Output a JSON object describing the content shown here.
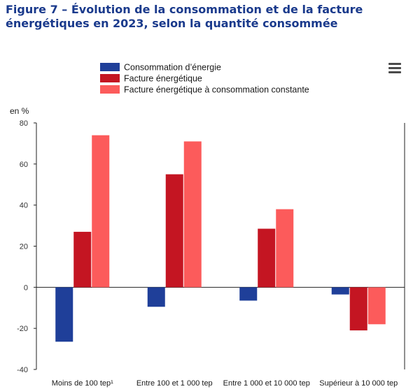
{
  "title": "Figure 7 – Évolution de la consommation et de la facture énergétiques en 2023, selon la quantité consommée",
  "menu_icon": "hamburger-menu-icon",
  "chart_data": {
    "type": "bar",
    "title": "",
    "ylabel": "en %",
    "xlabel": "",
    "ylim": [
      -40,
      80
    ],
    "yticks": [
      -40,
      -20,
      0,
      20,
      40,
      60,
      80
    ],
    "grid": false,
    "legend_position": "top",
    "categories": [
      "Moins de 100 tep¹",
      "Entre 100 et 1 000 tep",
      "Entre 1 000 et 10 000 tep",
      "Supérieur à 10 000 tep"
    ],
    "series": [
      {
        "name": "Consommation d’énergie",
        "color": "#1f3f99",
        "values": [
          -26.5,
          -9.5,
          -6.5,
          -3.5
        ]
      },
      {
        "name": "Facture énergétique",
        "color": "#c41522",
        "values": [
          27,
          55,
          28.5,
          -21
        ]
      },
      {
        "name": "Facture énergétique à consommation constante",
        "color": "#fc5b5b",
        "values": [
          74,
          71,
          38,
          -18
        ]
      }
    ]
  }
}
